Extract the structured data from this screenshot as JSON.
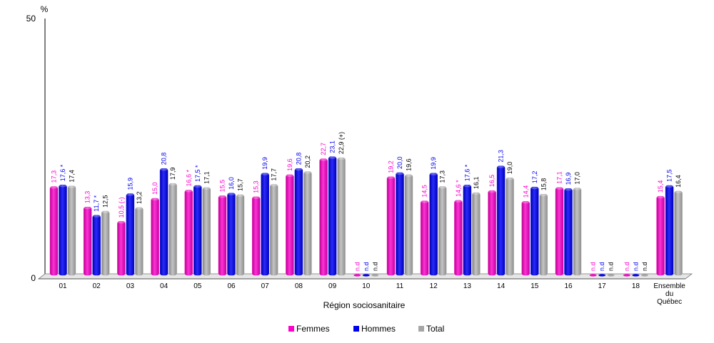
{
  "chart_data": {
    "type": "bar",
    "ylabel": "%",
    "xlabel": "Région sociosanitaire",
    "ylim": [
      0,
      50
    ],
    "y_ticks": [
      "0",
      "50"
    ],
    "grid": false,
    "legend_position": "bottom",
    "categories": [
      "01",
      "02",
      "03",
      "04",
      "05",
      "06",
      "07",
      "08",
      "09",
      "10",
      "11",
      "12",
      "13",
      "14",
      "15",
      "16",
      "17",
      "18",
      "Ensemble du Québec"
    ],
    "series": [
      {
        "name": "Femmes",
        "color": "#ff00cc",
        "values": [
          17.3,
          13.3,
          10.5,
          15.0,
          16.6,
          15.5,
          15.3,
          19.6,
          22.7,
          null,
          19.2,
          14.5,
          14.6,
          16.5,
          14.4,
          17.1,
          null,
          null,
          15.4
        ],
        "labels": [
          "17,3",
          "13,3",
          "10,5 (-)",
          "15,0",
          "16,6 *",
          "15,5",
          "15,3",
          "19,6",
          "22,7",
          "n.d",
          "19,2",
          "14,5",
          "14,6 *",
          "16,5",
          "14,4",
          "17,1",
          "n.d",
          "n.d",
          "15,4"
        ]
      },
      {
        "name": "Hommes",
        "color": "#0000ee",
        "values": [
          17.6,
          11.7,
          15.9,
          20.8,
          17.5,
          16.0,
          19.9,
          20.8,
          23.1,
          null,
          20.0,
          19.9,
          17.6,
          21.3,
          17.2,
          16.9,
          null,
          null,
          17.5
        ],
        "labels": [
          "17,6 *",
          "11,7 *",
          "15,9",
          "20,8",
          "17,5 *",
          "16,0",
          "19,9",
          "20,8",
          "23,1",
          "n.d",
          "20,0",
          "19,9",
          "17,6 *",
          "21,3",
          "17,2",
          "16,9",
          "n.d",
          "n.d",
          "17,5"
        ]
      },
      {
        "name": "Total",
        "color": "#a6a6a6",
        "values": [
          17.4,
          12.5,
          13.2,
          17.9,
          17.1,
          15.7,
          17.7,
          20.2,
          22.9,
          null,
          19.6,
          17.3,
          16.1,
          19.0,
          15.8,
          17.0,
          null,
          null,
          16.4
        ],
        "labels": [
          "17,4",
          "12,5",
          "13,2",
          "17,9",
          "17,1",
          "15,7",
          "17,7",
          "20,2",
          "22,9 (+)",
          "n.d",
          "19,6",
          "17,3",
          "16,1",
          "19,0",
          "15,8",
          "17,0",
          "n.d",
          "n.d",
          "16,4"
        ]
      }
    ]
  }
}
